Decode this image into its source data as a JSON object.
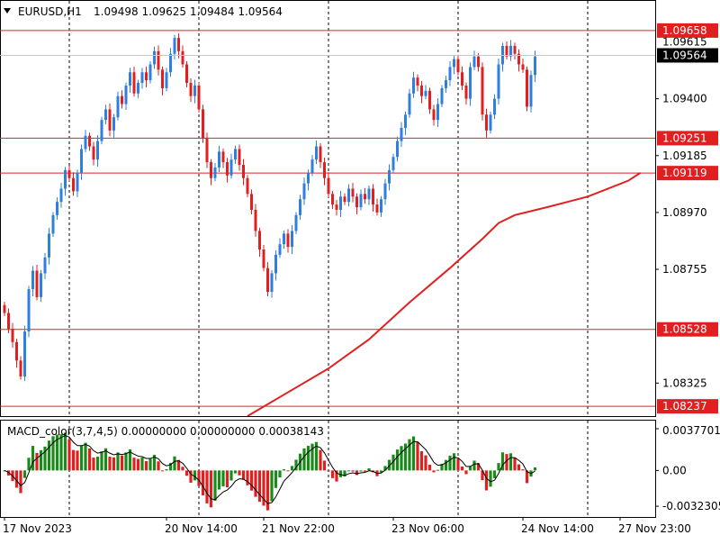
{
  "chart_data": {
    "type": "candlestick",
    "header": {
      "symbol_timeframe": "EURUSD,H1",
      "ohlc": "1.09498 1.09625 1.09484 1.09564",
      "menu_icon": "triangle-down-icon"
    },
    "price_axis": {
      "ylim": [
        1.082,
        1.0977
      ],
      "ticks": [
        {
          "value": 1.094,
          "label": "1.09400"
        },
        {
          "value": 1.09185,
          "label": "1.09185"
        },
        {
          "value": 1.0897,
          "label": "1.08970"
        },
        {
          "value": 1.08755,
          "label": "1.08755"
        },
        {
          "value": 1.08325,
          "label": "1.08325"
        }
      ],
      "current_price": {
        "value": 1.09564,
        "label": "1.09564"
      },
      "partial_label_under_current": {
        "value": 1.09615,
        "label": "1.09615"
      }
    },
    "levels": [
      {
        "value": 1.09658,
        "label": "1.09658",
        "color": "#e02020"
      },
      {
        "value": 1.09251,
        "label": "1.09251",
        "color": "#e02020"
      },
      {
        "value": 1.09119,
        "label": "1.09119",
        "color": "#e02020"
      },
      {
        "value": 1.08528,
        "label": "1.08528",
        "color": "#e02020"
      },
      {
        "value": 1.08237,
        "label": "1.08237",
        "color": "#e02020"
      }
    ],
    "time_axis": {
      "labels": [
        {
          "bar": 0,
          "label": "17 Nov 2023"
        },
        {
          "bar": 40,
          "label": "20 Nov 14:00"
        },
        {
          "bar": 64,
          "label": "21 Nov 22:00"
        },
        {
          "bar": 96,
          "label": "23 Nov 06:00"
        },
        {
          "bar": 128,
          "label": "24 Nov 14:00"
        },
        {
          "bar": 152,
          "label": "27 Nov 23:00"
        }
      ],
      "separator_bars": [
        16,
        48,
        80,
        112,
        144
      ]
    },
    "closes": [
      1.0859,
      1.0853,
      1.0848,
      1.0841,
      1.0835,
      1.0852,
      1.0868,
      1.0875,
      1.0865,
      1.0874,
      1.088,
      1.0889,
      1.0896,
      1.0901,
      1.0906,
      1.0913,
      1.091,
      1.0905,
      1.0912,
      1.0921,
      1.0926,
      1.0922,
      1.0917,
      1.0924,
      1.0932,
      1.0936,
      1.0928,
      1.0933,
      1.0941,
      1.0938,
      1.0945,
      1.095,
      1.0942,
      1.0946,
      1.095,
      1.0947,
      1.0953,
      1.0958,
      1.0951,
      1.0944,
      1.095,
      1.0957,
      1.0963,
      1.0958,
      1.0953,
      1.0946,
      1.0941,
      1.0945,
      1.0936,
      1.0925,
      1.0916,
      1.091,
      1.0914,
      1.092,
      1.0916,
      1.0911,
      1.0917,
      1.0921,
      1.0915,
      1.091,
      1.0904,
      1.0898,
      1.089,
      1.0883,
      1.0876,
      1.0867,
      1.0874,
      1.0881,
      1.0885,
      1.0889,
      1.0884,
      1.089,
      1.0896,
      1.0902,
      1.0908,
      1.0912,
      1.0917,
      1.0922,
      1.0916,
      1.091,
      1.0904,
      1.09,
      1.0898,
      1.0903,
      1.0901,
      1.0906,
      1.0903,
      1.0899,
      1.0904,
      1.0902,
      1.0906,
      1.09,
      1.0897,
      1.0902,
      1.0908,
      1.0913,
      1.0918,
      1.0924,
      1.0929,
      1.0934,
      1.0942,
      1.0948,
      1.0945,
      1.0941,
      1.0943,
      1.0936,
      1.0932,
      1.0938,
      1.0944,
      1.0947,
      1.0952,
      1.0955,
      1.095,
      1.0945,
      1.094,
      1.0952,
      1.0956,
      1.0952,
      1.0934,
      1.0928,
      1.0934,
      1.094,
      1.0953,
      1.096,
      1.0956,
      1.096,
      1.0957,
      1.0953,
      1.0951,
      1.0937,
      1.0949,
      1.0956
    ],
    "ma_line": {
      "color": "#e02020",
      "points": [
        {
          "bar": 60,
          "value": 1.082
        },
        {
          "bar": 70,
          "value": 1.0829
        },
        {
          "bar": 80,
          "value": 1.0838
        },
        {
          "bar": 90,
          "value": 1.0849
        },
        {
          "bar": 100,
          "value": 1.0863
        },
        {
          "bar": 110,
          "value": 1.0876
        },
        {
          "bar": 118,
          "value": 1.0887
        },
        {
          "bar": 122,
          "value": 1.0893
        },
        {
          "bar": 126,
          "value": 1.0896
        },
        {
          "bar": 134,
          "value": 1.0899
        },
        {
          "bar": 144,
          "value": 1.0903
        },
        {
          "bar": 154,
          "value": 1.0909
        },
        {
          "bar": 157,
          "value": 1.0912
        }
      ]
    },
    "macd": {
      "title": "MACD_color(3,7,4,5) 0.00000000 0.00000000 0.00038143",
      "ticks": [
        {
          "value": 0.0037701,
          "label": "0.0037701"
        },
        {
          "value": 0.0,
          "label": "0.00"
        },
        {
          "value": -0.0032305,
          "label": "-0.0032305"
        }
      ],
      "ylim": [
        -0.0042,
        0.0045
      ],
      "up_color": "#1a8a1a",
      "down_color": "#e02020",
      "signal_color": "#000000"
    },
    "colors": {
      "bull_candle": "#2e7fe0",
      "bear_candle": "#e02020",
      "grid": "#000000",
      "label_bg_current": "#000000"
    }
  }
}
